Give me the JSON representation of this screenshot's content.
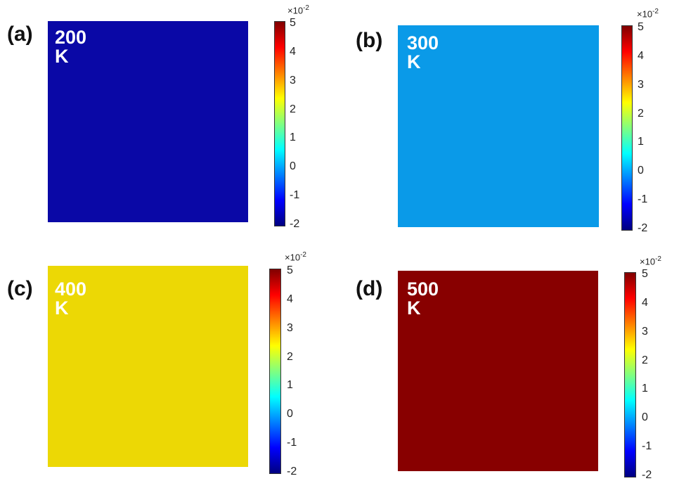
{
  "chart_data": [
    {
      "type": "heatmap",
      "panel_label": "(a)",
      "annotation": "200 K",
      "field_value": -2,
      "fill_color": "#0a08a6",
      "colorbar": {
        "min": -2,
        "max": 5,
        "ticks": [
          "5",
          "4",
          "3",
          "2",
          "1",
          "0",
          "-1",
          "-2"
        ],
        "multiplier_base": "×10",
        "multiplier_exp": "-2",
        "colormap": "jet"
      }
    },
    {
      "type": "heatmap",
      "panel_label": "(b)",
      "annotation": "300 K",
      "field_value": 0,
      "fill_color": "#0a9ae8",
      "colorbar": {
        "min": -2,
        "max": 5,
        "ticks": [
          "5",
          "4",
          "3",
          "2",
          "1",
          "0",
          "-1",
          "-2"
        ],
        "multiplier_base": "×10",
        "multiplier_exp": "-2",
        "colormap": "jet"
      }
    },
    {
      "type": "heatmap",
      "panel_label": "(c)",
      "annotation": "400 K",
      "field_value": 2.4,
      "fill_color": "#ecd805",
      "colorbar": {
        "min": -2,
        "max": 5,
        "ticks": [
          "5",
          "4",
          "3",
          "2",
          "1",
          "0",
          "-1",
          "-2"
        ],
        "multiplier_base": "×10",
        "multiplier_exp": "-2",
        "colormap": "jet"
      }
    },
    {
      "type": "heatmap",
      "panel_label": "(d)",
      "annotation": "500 K",
      "field_value": 5,
      "fill_color": "#880000",
      "colorbar": {
        "min": -2,
        "max": 5,
        "ticks": [
          "5",
          "4",
          "3",
          "2",
          "1",
          "0",
          "-1",
          "-2"
        ],
        "multiplier_base": "×10",
        "multiplier_exp": "-2",
        "colormap": "jet"
      }
    }
  ]
}
